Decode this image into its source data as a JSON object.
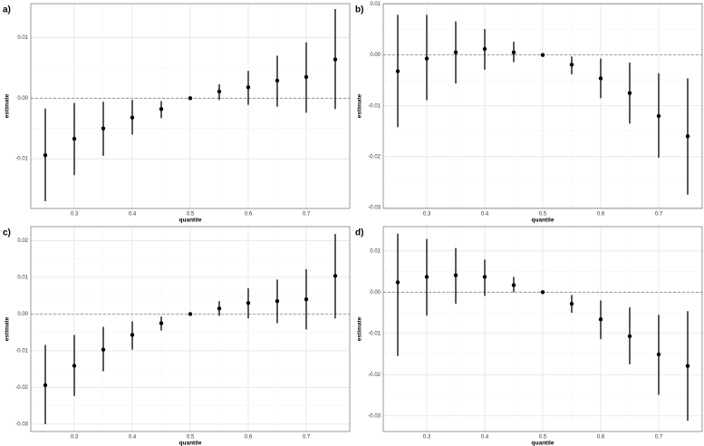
{
  "chart_data": [
    {
      "type": "pointrange",
      "panel_label": "a)",
      "xlabel": "quantile",
      "ylabel": "estimate",
      "color": "#000000",
      "grid": true,
      "hline": 0,
      "x": [
        0.25,
        0.3,
        0.35,
        0.4,
        0.45,
        0.5,
        0.55,
        0.6,
        0.65,
        0.7,
        0.75
      ],
      "values": [
        -0.0094,
        -0.0067,
        -0.005,
        -0.0032,
        -0.0018,
        0,
        0.0011,
        0.0018,
        0.0029,
        0.0035,
        0.0064
      ],
      "lower": [
        -0.017,
        -0.0127,
        -0.0095,
        -0.006,
        -0.0033,
        0,
        -0.0003,
        -0.0011,
        -0.0014,
        -0.0024,
        -0.0018
      ],
      "upper": [
        -0.0017,
        -0.0008,
        -0.0006,
        -0.0003,
        -0.0005,
        0,
        0.0023,
        0.0045,
        0.007,
        0.0092,
        0.0147
      ],
      "xlim": [
        0.225,
        0.775
      ],
      "xticks": [
        0.3,
        0.4,
        0.5,
        0.6,
        0.7
      ],
      "ylim": [
        -0.0182,
        0.0156
      ],
      "yticks": [
        -0.01,
        {
          "value": 0,
          "label": "0.00"
        },
        0.01
      ]
    },
    {
      "type": "pointrange",
      "panel_label": "b)",
      "xlabel": "quantile",
      "ylabel": "estimate",
      "color": "#000000",
      "grid": true,
      "hline": 0,
      "x": [
        0.25,
        0.3,
        0.35,
        0.4,
        0.45,
        0.5,
        0.55,
        0.6,
        0.65,
        0.7,
        0.75
      ],
      "values": [
        -0.0032,
        -0.0007,
        0.0005,
        0.0012,
        0.0005,
        0,
        -0.0019,
        -0.0046,
        -0.0075,
        -0.012,
        -0.016
      ],
      "lower": [
        -0.0142,
        -0.0089,
        -0.0056,
        -0.0029,
        -0.0014,
        0,
        -0.0038,
        -0.0085,
        -0.0135,
        -0.0202,
        -0.0275
      ],
      "upper": [
        0.0079,
        0.0079,
        0.0066,
        0.0051,
        0.0026,
        0,
        -0.0003,
        -0.0007,
        -0.0015,
        -0.0036,
        -0.0046
      ],
      "xlim": [
        0.225,
        0.775
      ],
      "xticks": [
        0.3,
        0.4,
        0.5,
        0.6,
        0.7
      ],
      "ylim": [
        -0.0302,
        0.0101
      ],
      "yticks": [
        -0.03,
        -0.02,
        -0.01,
        {
          "value": 0,
          "label": "0.00"
        },
        0.01
      ]
    },
    {
      "type": "pointrange",
      "panel_label": "c)",
      "xlabel": "quantile",
      "ylabel": "estimate",
      "color": "#000000",
      "grid": true,
      "hline": 0,
      "x": [
        0.25,
        0.3,
        0.35,
        0.4,
        0.45,
        0.5,
        0.55,
        0.6,
        0.65,
        0.7,
        0.75
      ],
      "values": [
        -0.0194,
        -0.0141,
        -0.0097,
        -0.0057,
        -0.0025,
        0,
        0.0015,
        0.003,
        0.0035,
        0.004,
        0.0104
      ],
      "lower": [
        -0.03,
        -0.0223,
        -0.0156,
        -0.0097,
        -0.0045,
        0,
        -0.0005,
        -0.0012,
        -0.0025,
        -0.0042,
        -0.0012
      ],
      "upper": [
        -0.0084,
        -0.0057,
        -0.0035,
        -0.002,
        -0.0007,
        0,
        0.0035,
        0.007,
        0.0094,
        0.0122,
        0.0218
      ],
      "xlim": [
        0.225,
        0.775
      ],
      "xticks": [
        0.3,
        0.4,
        0.5,
        0.6,
        0.7
      ],
      "ylim": [
        -0.032,
        0.0238
      ],
      "yticks": [
        -0.03,
        -0.02,
        -0.01,
        {
          "value": 0,
          "label": "0.00"
        },
        0.01,
        0.02
      ]
    },
    {
      "type": "pointrange",
      "panel_label": "d)",
      "xlabel": "quantile",
      "ylabel": "estimate",
      "color": "#000000",
      "grid": true,
      "hline": 0,
      "x": [
        0.25,
        0.3,
        0.35,
        0.4,
        0.45,
        0.5,
        0.55,
        0.6,
        0.65,
        0.7,
        0.75
      ],
      "values": [
        0.0024,
        0.0037,
        0.0041,
        0.0037,
        0.0017,
        0,
        -0.0028,
        -0.0066,
        -0.0107,
        -0.0151,
        -0.0179
      ],
      "lower": [
        -0.0155,
        -0.0057,
        -0.0028,
        -0.0009,
        0,
        0,
        -0.005,
        -0.0114,
        -0.0175,
        -0.0249,
        -0.0312
      ],
      "upper": [
        0.0142,
        0.0129,
        0.0107,
        0.0079,
        0.0037,
        0,
        -0.0007,
        -0.002,
        -0.0037,
        -0.0055,
        -0.0046
      ],
      "xlim": [
        0.225,
        0.775
      ],
      "xticks": [
        0.3,
        0.4,
        0.5,
        0.6,
        0.7
      ],
      "ylim": [
        -0.0338,
        0.0159
      ],
      "yticks": [
        -0.03,
        -0.02,
        -0.01,
        {
          "value": 0,
          "label": "0.00"
        },
        0.01
      ]
    }
  ]
}
